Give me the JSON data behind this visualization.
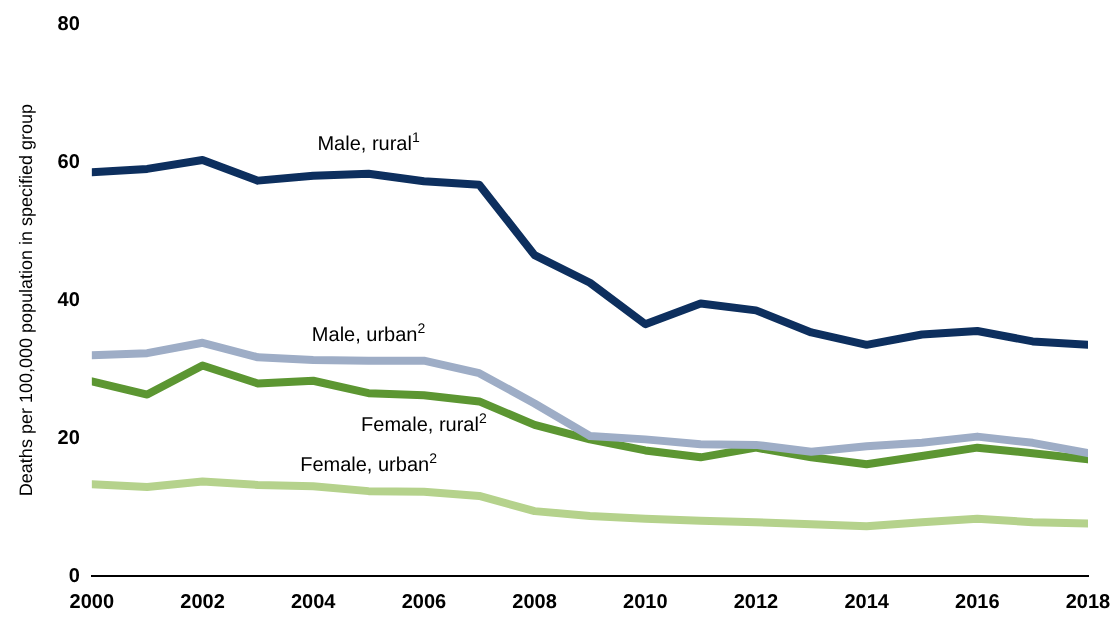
{
  "chart_data": {
    "type": "line",
    "ylabel": "Deaths per 100,000 population in specified group",
    "x": [
      2000,
      2001,
      2002,
      2003,
      2004,
      2005,
      2006,
      2007,
      2008,
      2009,
      2010,
      2011,
      2012,
      2013,
      2014,
      2015,
      2016,
      2017,
      2018
    ],
    "xlim": [
      2000,
      2018
    ],
    "xticks": [
      2000,
      2002,
      2004,
      2006,
      2008,
      2010,
      2012,
      2014,
      2016,
      2018
    ],
    "ylim": [
      0,
      80
    ],
    "yticks": [
      0,
      20,
      40,
      60,
      80
    ],
    "grid": false,
    "legend": false,
    "marker": "none",
    "line_style": "solid",
    "series": [
      {
        "name": "Male, rural$^{1}$",
        "color": "#0d2f5e",
        "values": [
          58.5,
          59,
          60.3,
          57.3,
          58,
          58.3,
          57.2,
          56.7,
          46.5,
          42.5,
          36.5,
          39.5,
          38.5,
          35.3,
          33.5,
          35,
          35.5,
          34,
          33.5
        ]
      },
      {
        "name": "Male, urban$^{2}$",
        "color": "#9eadc6",
        "values": [
          32,
          32.3,
          33.8,
          31.7,
          31.3,
          31.2,
          31.2,
          29.4,
          25,
          20.3,
          19.8,
          19.1,
          19,
          18,
          18.8,
          19.3,
          20.2,
          19.3,
          17.8
        ]
      },
      {
        "name": "Female, rural$^{2}$",
        "color": "#5c9632",
        "values": [
          28.2,
          26.3,
          30.5,
          27.9,
          28.3,
          26.5,
          26.2,
          25.3,
          21.9,
          19.8,
          18.2,
          17.2,
          18.6,
          17.2,
          16.2,
          17.4,
          18.6,
          17.8,
          16.9
        ]
      },
      {
        "name": "Female, urban$^{2}$",
        "color": "#b5d28c",
        "values": [
          13.3,
          12.9,
          13.7,
          13.2,
          13,
          12.3,
          12.2,
          11.6,
          9.4,
          8.7,
          8.3,
          8,
          7.8,
          7.5,
          7.2,
          7.8,
          8.3,
          7.8,
          7.6
        ]
      }
    ]
  }
}
